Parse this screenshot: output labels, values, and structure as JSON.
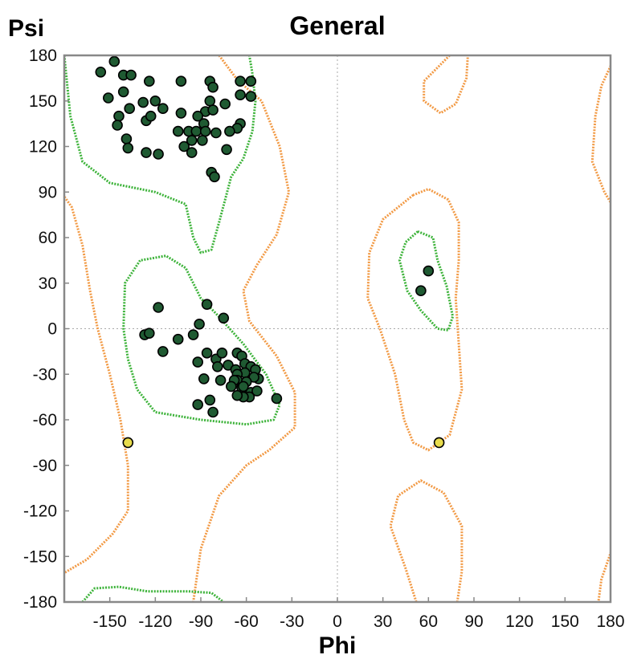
{
  "chart_data": {
    "type": "scatter",
    "title": "General",
    "xlabel": "Phi",
    "ylabel": "Psi",
    "xlim": [
      -180,
      180
    ],
    "ylim": [
      -180,
      180
    ],
    "x_ticks": [
      "-150",
      "-120",
      "-90",
      "-60",
      "-30",
      "0",
      "30",
      "60",
      "90",
      "120",
      "150",
      "180"
    ],
    "y_ticks": [
      "180",
      "150",
      "120",
      "90",
      "60",
      "30",
      "0",
      "-30",
      "-60",
      "-90",
      "-120",
      "-150",
      "-180"
    ],
    "grid": "dotted zero lines",
    "colors": {
      "favored_contour": "#3db33a",
      "allowed_contour": "#f29a45",
      "favored_points": "#1f5a32",
      "outlier_points": "#e8dc4c",
      "frame": "#888888"
    },
    "contours": {
      "favored": [
        [
          [
            -180,
            180
          ],
          [
            -176,
            140
          ],
          [
            -168,
            110
          ],
          [
            -150,
            96
          ],
          [
            -120,
            90
          ],
          [
            -100,
            82
          ],
          [
            -95,
            60
          ],
          [
            -90,
            50
          ],
          [
            -83,
            52
          ],
          [
            -78,
            70
          ],
          [
            -70,
            100
          ],
          [
            -62,
            112
          ],
          [
            -56,
            130
          ],
          [
            -54,
            150
          ],
          [
            -56,
            168
          ],
          [
            -58,
            180
          ]
        ],
        [
          [
            -130,
            45
          ],
          [
            -140,
            30
          ],
          [
            -141,
            0
          ],
          [
            -138,
            -20
          ],
          [
            -132,
            -40
          ],
          [
            -120,
            -55
          ],
          [
            -90,
            -60
          ],
          [
            -60,
            -63
          ],
          [
            -42,
            -60
          ],
          [
            -38,
            -50
          ],
          [
            -47,
            -30
          ],
          [
            -62,
            -10
          ],
          [
            -80,
            10
          ],
          [
            -90,
            20
          ],
          [
            -100,
            40
          ],
          [
            -113,
            48
          ],
          [
            -130,
            45
          ]
        ],
        [
          [
            53,
            64
          ],
          [
            45,
            57
          ],
          [
            41,
            45
          ],
          [
            46,
            25
          ],
          [
            55,
            12
          ],
          [
            66,
            0
          ],
          [
            73,
            -1
          ],
          [
            76,
            8
          ],
          [
            72,
            28
          ],
          [
            66,
            45
          ],
          [
            63,
            60
          ],
          [
            53,
            64
          ]
        ],
        [
          [
            -168,
            -180
          ],
          [
            -160,
            -171
          ],
          [
            -144,
            -170
          ],
          [
            -125,
            -173
          ],
          [
            -98,
            -173
          ],
          [
            -83,
            -174
          ],
          [
            -75,
            -180
          ]
        ]
      ],
      "allowed": [
        [
          [
            -78,
            180
          ],
          [
            -66,
            164
          ],
          [
            -50,
            150
          ],
          [
            -38,
            120
          ],
          [
            -32,
            90
          ],
          [
            -40,
            62
          ],
          [
            -53,
            42
          ],
          [
            -62,
            25
          ],
          [
            -58,
            5
          ],
          [
            -40,
            -18
          ],
          [
            -28,
            -42
          ],
          [
            -28,
            -65
          ],
          [
            -45,
            -80
          ],
          [
            -60,
            -90
          ],
          [
            -78,
            -110
          ],
          [
            -90,
            -145
          ],
          [
            -95,
            -180
          ]
        ],
        [
          [
            -182,
            90
          ],
          [
            -175,
            80
          ],
          [
            -168,
            55
          ],
          [
            -163,
            25
          ],
          [
            -158,
            0
          ],
          [
            -150,
            -30
          ],
          [
            -143,
            -60
          ],
          [
            -138,
            -90
          ],
          [
            -138,
            -120
          ],
          [
            -148,
            -135
          ],
          [
            -165,
            -152
          ],
          [
            -182,
            -162
          ]
        ],
        [
          [
            50,
            88
          ],
          [
            30,
            72
          ],
          [
            21,
            50
          ],
          [
            20,
            20
          ],
          [
            28,
            0
          ],
          [
            38,
            -30
          ],
          [
            44,
            -60
          ],
          [
            50,
            -75
          ],
          [
            60,
            -80
          ],
          [
            74,
            -70
          ],
          [
            82,
            -40
          ],
          [
            80,
            -10
          ],
          [
            78,
            20
          ],
          [
            80,
            45
          ],
          [
            80,
            70
          ],
          [
            73,
            85
          ],
          [
            60,
            92
          ],
          [
            50,
            88
          ]
        ],
        [
          [
            74,
            180
          ],
          [
            57,
            163
          ],
          [
            57,
            150
          ],
          [
            68,
            142
          ],
          [
            78,
            148
          ],
          [
            85,
            165
          ],
          [
            86,
            180
          ]
        ],
        [
          [
            52,
            -180
          ],
          [
            45,
            -158
          ],
          [
            35,
            -130
          ],
          [
            40,
            -110
          ],
          [
            55,
            -100
          ],
          [
            70,
            -108
          ],
          [
            82,
            -130
          ],
          [
            82,
            -160
          ],
          [
            79,
            -180
          ]
        ],
        [
          [
            181,
            175
          ],
          [
            174,
            160
          ],
          [
            170,
            140
          ],
          [
            168,
            110
          ],
          [
            176,
            90
          ],
          [
            182,
            80
          ]
        ],
        [
          [
            181,
            -145
          ],
          [
            174,
            -165
          ],
          [
            172,
            -180
          ]
        ]
      ]
    },
    "series": [
      {
        "name": "",
        "color": "#1f5a32",
        "points": [
          [
            -156,
            169
          ],
          [
            -147,
            176
          ],
          [
            -151,
            152
          ],
          [
            -141,
            167
          ],
          [
            -136,
            167
          ],
          [
            -141,
            156
          ],
          [
            -137,
            145
          ],
          [
            -128,
            149
          ],
          [
            -124,
            163
          ],
          [
            -120,
            150
          ],
          [
            -115,
            145
          ],
          [
            -103,
            163
          ],
          [
            -84,
            163
          ],
          [
            -82,
            159
          ],
          [
            -64,
            163
          ],
          [
            -57,
            163
          ],
          [
            -64,
            154
          ],
          [
            -57,
            153
          ],
          [
            -74,
            148
          ],
          [
            -84,
            150
          ],
          [
            -87,
            143
          ],
          [
            -82,
            144
          ],
          [
            -126,
            137
          ],
          [
            -123,
            140
          ],
          [
            -144,
            140
          ],
          [
            -145,
            134
          ],
          [
            -139,
            125
          ],
          [
            -138,
            119
          ],
          [
            -126,
            116
          ],
          [
            -118,
            115
          ],
          [
            -103,
            142
          ],
          [
            -98,
            130
          ],
          [
            -93,
            130
          ],
          [
            -92,
            140
          ],
          [
            -88,
            135
          ],
          [
            -87,
            130
          ],
          [
            -96,
            124
          ],
          [
            -101,
            120
          ],
          [
            -96,
            116
          ],
          [
            -89,
            124
          ],
          [
            -80,
            129
          ],
          [
            -105,
            130
          ],
          [
            -64,
            135
          ],
          [
            -66,
            132
          ],
          [
            -71,
            130
          ],
          [
            -73,
            118
          ],
          [
            -83,
            103
          ],
          [
            -81,
            100
          ],
          [
            -118,
            14
          ],
          [
            -86,
            16
          ],
          [
            -75,
            7
          ],
          [
            -127,
            -4
          ],
          [
            -124,
            -3
          ],
          [
            -105,
            -7
          ],
          [
            -95,
            -4
          ],
          [
            -91,
            3
          ],
          [
            -115,
            -15
          ],
          [
            -86,
            -16
          ],
          [
            -80,
            -20
          ],
          [
            -76,
            -16
          ],
          [
            -66,
            -16
          ],
          [
            -72,
            -24
          ],
          [
            -63,
            -18
          ],
          [
            -92,
            -22
          ],
          [
            -79,
            -25
          ],
          [
            -67,
            -27
          ],
          [
            -61,
            -23
          ],
          [
            -57,
            -25
          ],
          [
            -54,
            -27
          ],
          [
            -52,
            -33
          ],
          [
            -55,
            -32
          ],
          [
            -61,
            -29
          ],
          [
            -66,
            -30
          ],
          [
            -66,
            -34
          ],
          [
            -60,
            -35
          ],
          [
            -63,
            -39
          ],
          [
            -57,
            -42
          ],
          [
            -53,
            -41
          ],
          [
            -58,
            -45
          ],
          [
            -62,
            -45
          ],
          [
            -66,
            -44
          ],
          [
            -62,
            -38
          ],
          [
            -68,
            -34
          ],
          [
            -70,
            -38
          ],
          [
            -77,
            -34
          ],
          [
            -88,
            -33
          ],
          [
            -84,
            -47
          ],
          [
            -82,
            -55
          ],
          [
            -92,
            -50
          ],
          [
            -40,
            -46
          ],
          [
            60,
            38
          ],
          [
            55,
            25
          ]
        ]
      },
      {
        "name": "",
        "color": "#e8dc4c",
        "points": [
          [
            -138,
            -75
          ],
          [
            67,
            -75
          ]
        ]
      }
    ]
  }
}
